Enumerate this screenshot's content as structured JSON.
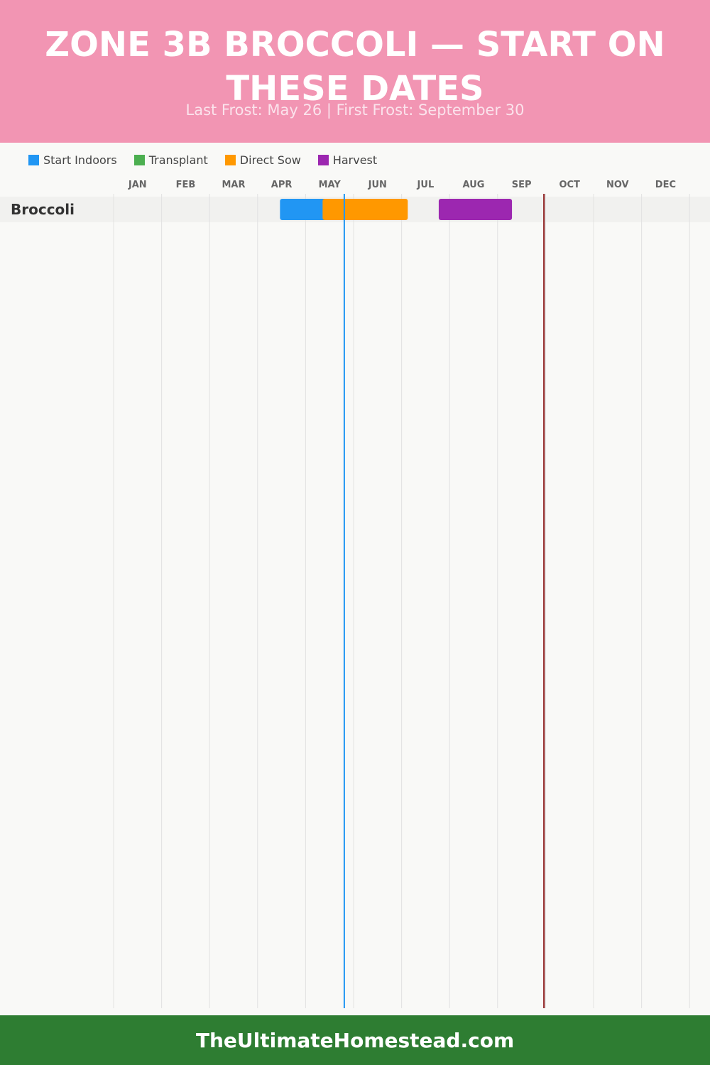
{
  "header": {
    "title": "ZONE 3B BROCCOLI — START ON THESE DATES",
    "subtitle": "Last Frost: May 26 | First Frost: September 30"
  },
  "legend": [
    {
      "label": "Start Indoors",
      "color": "#2196f3"
    },
    {
      "label": "Transplant",
      "color": "#4caf50"
    },
    {
      "label": "Direct Sow",
      "color": "#ff9800"
    },
    {
      "label": "Harvest",
      "color": "#9c27b0"
    }
  ],
  "footer": {
    "text": "TheUltimateHomestead.com"
  },
  "chart_data": {
    "type": "gantt",
    "months": [
      "JAN",
      "FEB",
      "MAR",
      "APR",
      "MAY",
      "JUN",
      "JUL",
      "AUG",
      "SEP",
      "OCT",
      "NOV",
      "DEC"
    ],
    "rows": [
      {
        "label": "Broccoli",
        "bars": [
          {
            "type": "Start Indoors",
            "start": "Apr 15",
            "end": "May 26",
            "color": "#2196f3"
          },
          {
            "type": "Direct Sow",
            "start": "May 12",
            "end": "Jul 5",
            "color": "#ff9800"
          },
          {
            "type": "Harvest",
            "start": "Jul 25",
            "end": "Sep 10",
            "color": "#9c27b0"
          }
        ]
      }
    ],
    "markers": [
      {
        "name": "Last Frost",
        "date": "May 26",
        "color": "#2196f3"
      },
      {
        "name": "First Frost",
        "date": "Sep 30",
        "color": "#8b1a1a"
      }
    ]
  }
}
